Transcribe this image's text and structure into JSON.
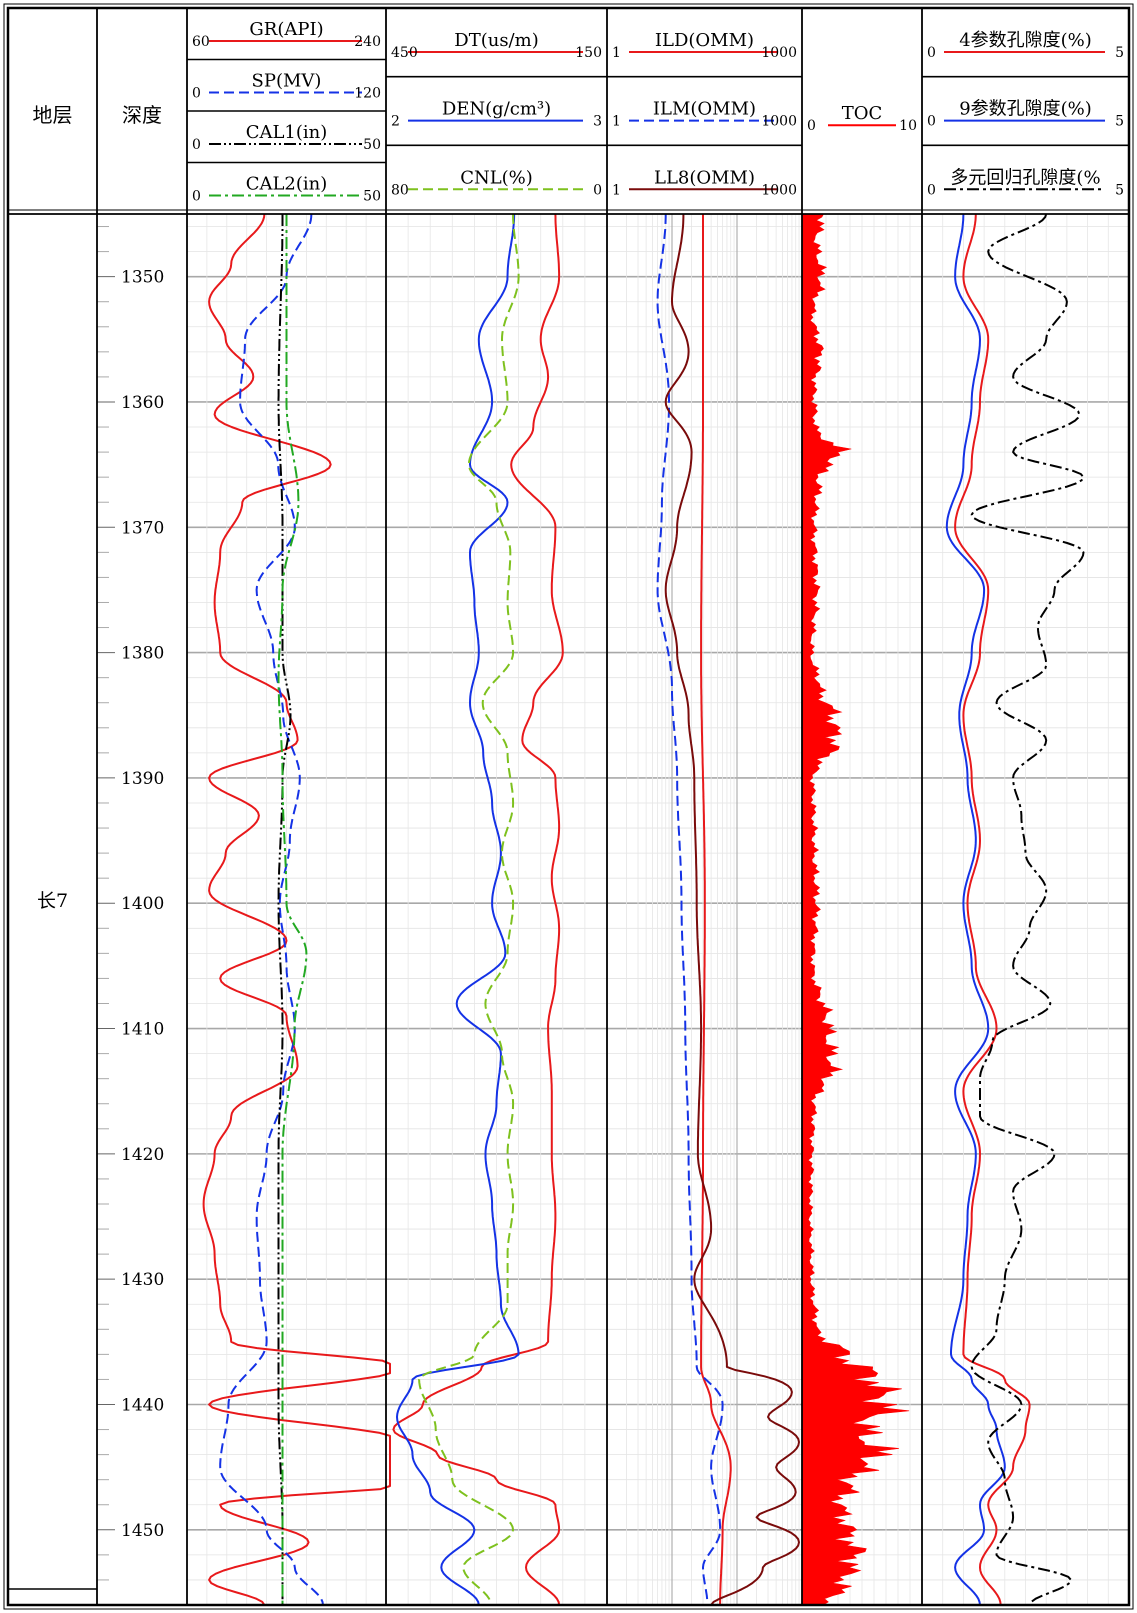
{
  "chart_data": {
    "type": "line",
    "title": "",
    "depth_range": [
      1345,
      1456
    ],
    "depth_ticks": [
      1350,
      1360,
      1370,
      1380,
      1390,
      1400,
      1410,
      1420,
      1430,
      1440,
      1450
    ],
    "formation": {
      "header": "地层",
      "name": "长7"
    },
    "depth_header": "深度",
    "tracks": [
      {
        "id": "t1",
        "curves": [
          {
            "name": "GR(API)",
            "min": "60",
            "max": "240",
            "color": "#e8191b",
            "style": "solid"
          },
          {
            "name": "SP(MV)",
            "min": "0",
            "max": "120",
            "color": "#1432e6",
            "style": "dash"
          },
          {
            "name": "CAL1(in)",
            "min": "0",
            "max": "50",
            "color": "#000000",
            "style": "dashdotdot"
          },
          {
            "name": "CAL2(in)",
            "min": "0",
            "max": "50",
            "color": "#22a822",
            "style": "dashdot"
          }
        ]
      },
      {
        "id": "t2",
        "curves": [
          {
            "name": "DT(us/m)",
            "min": "450",
            "max": "150",
            "color": "#e8191b",
            "style": "solid"
          },
          {
            "name": "DEN(g/cm³)",
            "min": "2",
            "max": "3",
            "color": "#1432e6",
            "style": "solid"
          },
          {
            "name": "CNL(%)",
            "min": "80",
            "max": "0",
            "color": "#7ec11e",
            "style": "dash"
          }
        ]
      },
      {
        "id": "t3",
        "curves": [
          {
            "name": "ILD(OMM)",
            "min": "1",
            "max": "1000",
            "color": "#e8191b",
            "style": "solid"
          },
          {
            "name": "ILM(OMM)",
            "min": "1",
            "max": "1000",
            "color": "#1432e6",
            "style": "dash"
          },
          {
            "name": "LL8(OMM)",
            "min": "1",
            "max": "1000",
            "color": "#7a0b0b",
            "style": "solid"
          }
        ]
      },
      {
        "id": "t4",
        "curves": [
          {
            "name": "TOC",
            "min": "0",
            "max": "10",
            "color": "#ff0000",
            "style": "fill"
          }
        ]
      },
      {
        "id": "t5",
        "curves": [
          {
            "name": "4参数孔隙度(%)",
            "min": "0",
            "max": "5",
            "color": "#e8191b",
            "style": "solid"
          },
          {
            "name": "9参数孔隙度(%)",
            "min": "0",
            "max": "5",
            "color": "#1432e6",
            "style": "solid"
          },
          {
            "name": "多元回归孔隙度(%",
            "min": "0",
            "max": "5",
            "color": "#000000",
            "style": "dashdot"
          }
        ]
      }
    ],
    "series": [
      {
        "name": "GR(API)",
        "track": "t1",
        "depth": [
          1345,
          1349,
          1352,
          1355,
          1358,
          1361,
          1365,
          1368,
          1372,
          1376,
          1380,
          1384,
          1387,
          1390,
          1393,
          1396,
          1399,
          1403,
          1406,
          1409,
          1413,
          1417,
          1420,
          1424,
          1428,
          1432,
          1435,
          1437,
          1440,
          1443,
          1446,
          1448,
          1451,
          1454,
          1456
        ],
        "value": [
          130,
          100,
          80,
          95,
          120,
          85,
          190,
          110,
          90,
          85,
          90,
          150,
          160,
          80,
          125,
          95,
          80,
          150,
          90,
          150,
          160,
          100,
          85,
          75,
          85,
          90,
          100,
          260,
          80,
          260,
          300,
          90,
          170,
          80,
          130
        ]
      },
      {
        "name": "SP(MV)",
        "track": "t1",
        "depth": [
          1345,
          1350,
          1355,
          1360,
          1365,
          1370,
          1375,
          1380,
          1385,
          1390,
          1395,
          1400,
          1405,
          1410,
          1415,
          1420,
          1425,
          1430,
          1435,
          1440,
          1445,
          1450,
          1453,
          1456
        ],
        "value": [
          75,
          60,
          35,
          32,
          55,
          65,
          42,
          52,
          58,
          68,
          62,
          56,
          60,
          65,
          58,
          48,
          42,
          44,
          48,
          25,
          20,
          48,
          65,
          82
        ]
      },
      {
        "name": "CAL1(in)",
        "track": "t1",
        "depth": [
          1345,
          1360,
          1370,
          1380,
          1385,
          1390,
          1400,
          1410,
          1420,
          1430,
          1440,
          1450,
          1456
        ],
        "value": [
          24,
          23,
          24,
          24,
          26,
          24,
          23,
          24,
          23,
          23,
          23,
          24,
          24
        ]
      },
      {
        "name": "CAL2(in)",
        "track": "t1",
        "depth": [
          1345,
          1360,
          1368,
          1375,
          1382,
          1390,
          1400,
          1404,
          1410,
          1420,
          1430,
          1440,
          1450,
          1456
        ],
        "value": [
          25,
          25,
          28,
          24,
          23,
          24,
          25,
          30,
          27,
          24,
          24,
          24,
          24,
          24
        ]
      },
      {
        "name": "DT(us/m)",
        "track": "t2",
        "depth": [
          1345,
          1350,
          1355,
          1358,
          1362,
          1365,
          1370,
          1375,
          1380,
          1384,
          1387,
          1390,
          1394,
          1398,
          1402,
          1406,
          1410,
          1415,
          1420,
          1425,
          1430,
          1435,
          1437,
          1440,
          1442,
          1444,
          1446,
          1448,
          1450,
          1453,
          1456
        ],
        "value": [
          220,
          215,
          240,
          230,
          250,
          280,
          220,
          225,
          210,
          250,
          265,
          220,
          215,
          225,
          215,
          220,
          230,
          225,
          225,
          220,
          225,
          230,
          320,
          400,
          440,
          380,
          300,
          220,
          215,
          260,
          215
        ]
      },
      {
        "name": "DEN(g/cm³)",
        "track": "t2",
        "depth": [
          1345,
          1350,
          1355,
          1360,
          1365,
          1368,
          1372,
          1376,
          1380,
          1384,
          1388,
          1392,
          1396,
          1400,
          1404,
          1408,
          1412,
          1416,
          1420,
          1424,
          1428,
          1432,
          1436,
          1438,
          1441,
          1444,
          1447,
          1450,
          1453,
          1456
        ],
        "value": [
          2.58,
          2.55,
          2.42,
          2.48,
          2.38,
          2.55,
          2.38,
          2.4,
          2.42,
          2.38,
          2.44,
          2.48,
          2.52,
          2.48,
          2.54,
          2.32,
          2.52,
          2.5,
          2.45,
          2.48,
          2.5,
          2.52,
          2.6,
          2.12,
          2.05,
          2.12,
          2.2,
          2.4,
          2.25,
          2.42
        ]
      },
      {
        "name": "CNL(%)",
        "track": "t2",
        "depth": [
          1345,
          1350,
          1355,
          1360,
          1365,
          1368,
          1372,
          1376,
          1380,
          1384,
          1388,
          1392,
          1396,
          1400,
          1404,
          1408,
          1412,
          1416,
          1420,
          1424,
          1428,
          1432,
          1436,
          1438,
          1442,
          1446,
          1450,
          1453,
          1456
        ],
        "value": [
          34,
          32,
          38,
          36,
          50,
          40,
          35,
          36,
          34,
          45,
          36,
          34,
          38,
          34,
          36,
          44,
          38,
          34,
          36,
          34,
          36,
          36,
          48,
          68,
          62,
          56,
          34,
          52,
          42
        ]
      },
      {
        "name": "ILD(OMM)",
        "track": "t3",
        "depth": [
          1345,
          1360,
          1380,
          1400,
          1420,
          1437,
          1440,
          1445,
          1450,
          1456
        ],
        "value": [
          30,
          30,
          28,
          32,
          30,
          28,
          40,
          80,
          60,
          55
        ]
      },
      {
        "name": "ILM(OMM)",
        "track": "t3",
        "depth": [
          1345,
          1352,
          1360,
          1368,
          1375,
          1383,
          1390,
          1400,
          1410,
          1420,
          1430,
          1437,
          1440,
          1445,
          1450,
          1453,
          1456
        ],
        "value": [
          8,
          6,
          9,
          7,
          6,
          10,
          12,
          14,
          16,
          18,
          20,
          24,
          60,
          40,
          55,
          30,
          35
        ]
      },
      {
        "name": "LL8(OMM)",
        "track": "t3",
        "depth": [
          1345,
          1352,
          1356,
          1360,
          1364,
          1370,
          1375,
          1380,
          1385,
          1390,
          1400,
          1410,
          1420,
          1426,
          1430,
          1437,
          1439,
          1441,
          1443,
          1445,
          1447,
          1449,
          1451,
          1453,
          1456
        ],
        "value": [
          15,
          10,
          18,
          8,
          20,
          12,
          8,
          12,
          18,
          22,
          24,
          28,
          25,
          40,
          22,
          70,
          700,
          300,
          900,
          400,
          800,
          200,
          900,
          250,
          40
        ]
      },
      {
        "name": "TOC",
        "track": "t4",
        "depth": [
          1345,
          1347,
          1350,
          1353,
          1356,
          1359,
          1362,
          1364,
          1366,
          1370,
          1375,
          1380,
          1383,
          1385,
          1387,
          1390,
          1395,
          1400,
          1405,
          1410,
          1413,
          1416,
          1420,
          1425,
          1430,
          1434,
          1436,
          1438,
          1440,
          1442,
          1444,
          1446,
          1448,
          1450,
          1452,
          1454,
          1456
        ],
        "value": [
          1.8,
          1.2,
          1.6,
          0.9,
          1.5,
          1.0,
          1.1,
          3.1,
          1.4,
          1.0,
          1.2,
          0.8,
          1.5,
          2.6,
          2.8,
          0.9,
          1.0,
          1.2,
          0.9,
          2.2,
          2.5,
          1.0,
          0.8,
          0.7,
          0.8,
          1.2,
          3.5,
          6.1,
          7.0,
          5.2,
          6.3,
          4.1,
          3.2,
          3.8,
          4.5,
          3.6,
          2.2
        ]
      },
      {
        "name": "4参数孔隙度(%)",
        "track": "t5",
        "depth": [
          1345,
          1350,
          1355,
          1360,
          1365,
          1370,
          1375,
          1380,
          1385,
          1390,
          1395,
          1400,
          1405,
          1410,
          1415,
          1420,
          1425,
          1430,
          1436,
          1438,
          1440,
          1442,
          1445,
          1448,
          1450,
          1453,
          1456
        ],
        "value": [
          1.3,
          1.0,
          1.6,
          1.4,
          1.2,
          0.8,
          1.6,
          1.4,
          1.0,
          1.2,
          1.4,
          1.1,
          1.3,
          1.8,
          1.0,
          1.4,
          1.2,
          1.1,
          1.0,
          2.0,
          2.6,
          2.5,
          2.2,
          1.6,
          1.8,
          1.4,
          1.9
        ]
      },
      {
        "name": "9参数孔隙度(%)",
        "track": "t5",
        "depth": [
          1345,
          1350,
          1355,
          1360,
          1365,
          1370,
          1375,
          1380,
          1385,
          1390,
          1395,
          1400,
          1405,
          1410,
          1415,
          1420,
          1425,
          1430,
          1436,
          1438,
          1440,
          1442,
          1445,
          1448,
          1450,
          1453,
          1456
        ],
        "value": [
          1.0,
          0.8,
          1.4,
          1.2,
          1.0,
          0.6,
          1.5,
          1.2,
          0.9,
          1.1,
          1.3,
          1.0,
          1.2,
          1.6,
          0.8,
          1.3,
          1.1,
          1.0,
          0.7,
          1.2,
          1.6,
          1.8,
          2.0,
          1.4,
          1.5,
          0.8,
          1.4
        ]
      },
      {
        "name": "多元回归孔隙度(%",
        "track": "t5",
        "depth": [
          1345,
          1348,
          1352,
          1355,
          1358,
          1361,
          1364,
          1366,
          1369,
          1372,
          1375,
          1378,
          1381,
          1384,
          1387,
          1390,
          1393,
          1396,
          1399,
          1402,
          1405,
          1408,
          1411,
          1414,
          1417,
          1420,
          1423,
          1426,
          1430,
          1434,
          1437,
          1440,
          1443,
          1446,
          1449,
          1452,
          1454,
          1456
        ],
        "value": [
          3.0,
          1.6,
          3.5,
          3.0,
          2.2,
          3.8,
          2.2,
          3.9,
          1.2,
          3.9,
          3.2,
          2.8,
          3.0,
          1.8,
          3.0,
          2.2,
          2.4,
          2.5,
          3.0,
          2.6,
          2.2,
          3.1,
          1.7,
          1.4,
          1.4,
          3.2,
          2.2,
          2.4,
          2.0,
          1.8,
          1.2,
          2.4,
          1.6,
          2.0,
          2.2,
          1.8,
          3.6,
          2.6
        ]
      }
    ]
  }
}
